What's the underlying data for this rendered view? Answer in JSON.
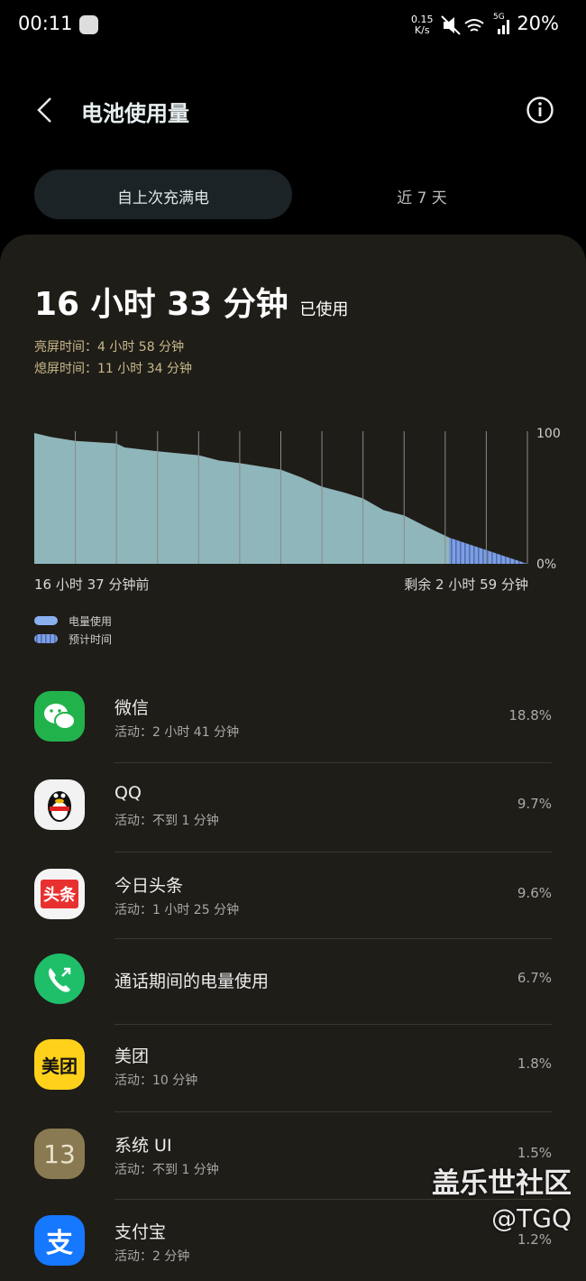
{
  "status_bar": {
    "time": "00:11",
    "net_speed": "0.15",
    "net_unit": "K/s",
    "network": "5G",
    "battery": "20%"
  },
  "header": {
    "title": "电池使用量"
  },
  "tabs": [
    "自上次充满电",
    "近 7 天"
  ],
  "summary": {
    "total": "16 小时 33 分钟",
    "total_suffix": "已使用",
    "screen_on": "亮屏时间：4 小时 58 分钟",
    "screen_off": "熄屏时间：11 小时 34 分钟"
  },
  "chart_data": {
    "type": "area",
    "x": [
      0,
      0.4,
      1,
      2,
      2.2,
      3,
      4,
      4.5,
      5,
      6,
      6.5,
      7,
      7.6,
      8,
      8.5,
      9,
      9.5,
      10.1,
      10.1,
      12
    ],
    "series": [
      {
        "name": "电量使用",
        "color": "#8fb6bb",
        "values": [
          100,
          97,
          94,
          92,
          89,
          86,
          83,
          79,
          77,
          72,
          66,
          59,
          54,
          50,
          41,
          37,
          29,
          20,
          null,
          null
        ]
      },
      {
        "name": "预计时间",
        "color": "#6f93dd",
        "values": [
          null,
          null,
          null,
          null,
          null,
          null,
          null,
          null,
          null,
          null,
          null,
          null,
          null,
          null,
          null,
          null,
          null,
          null,
          20,
          0
        ]
      }
    ],
    "xlim": [
      0,
      12
    ],
    "xticks": [
      1,
      2,
      3,
      4,
      5,
      6,
      7,
      8,
      9,
      10,
      11,
      12
    ],
    "ylim": [
      0,
      100
    ],
    "yticks": [
      {
        "value": 0,
        "label": "0%"
      },
      100
    ],
    "grid": true,
    "start_label": "16 小时 37 分钟前",
    "end_label": "剩余 2 小时 59 分钟"
  },
  "apps": [
    {
      "name": "微信",
      "detail": "活动：2 小时 41 分钟",
      "usage": "18.8%"
    },
    {
      "name": "QQ",
      "detail": "活动：不到 1 分钟",
      "usage": "9.7%"
    },
    {
      "name": "今日头条",
      "detail": "活动：1 小时 25 分钟",
      "usage": "9.6%",
      "icon_text": "头条"
    },
    {
      "name": "通话期间的电量使用",
      "usage": "6.7%"
    },
    {
      "name": "美团",
      "detail": "活动：10 分钟",
      "usage": "1.8%",
      "icon_text": "美团"
    },
    {
      "name": "系统 UI",
      "detail": "活动：不到 1 分钟",
      "usage": "1.5%",
      "icon_text": "13"
    },
    {
      "name": "支付宝",
      "detail": "活动：2 分钟",
      "usage": "1.2%",
      "icon_text": "支"
    }
  ],
  "watermark": {
    "site": "盖乐世社区",
    "handle": "@TGQ"
  }
}
